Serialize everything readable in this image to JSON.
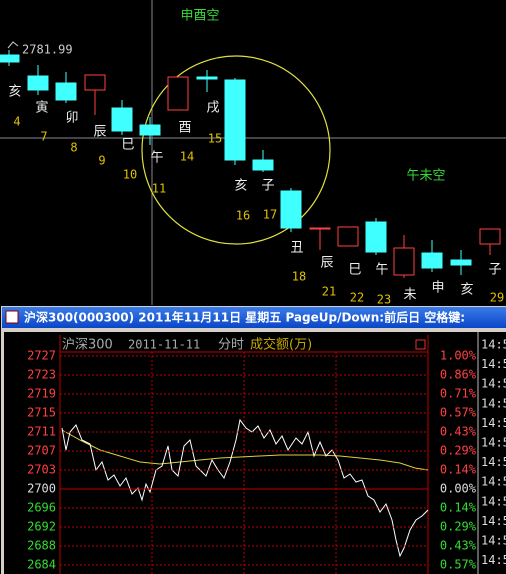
{
  "top_chart": {
    "price_label": "2781.99",
    "annotations": [
      "申酉空",
      "午未空"
    ],
    "candle_labels": [
      {
        "branch": "亥",
        "day": "4"
      },
      {
        "branch": "寅",
        "day": "7"
      },
      {
        "branch": "卯",
        "day": "8"
      },
      {
        "branch": "辰",
        "day": "9"
      },
      {
        "branch": "巳",
        "day": "10"
      },
      {
        "branch": "午",
        "day": "11"
      },
      {
        "branch": "酉",
        "day": "14"
      },
      {
        "branch": "戌",
        "day": "15"
      },
      {
        "branch": "亥",
        "day": "16"
      },
      {
        "branch": "子",
        "day": "17"
      },
      {
        "branch": "丑",
        "day": "18"
      },
      {
        "branch": "辰",
        "day": "21"
      },
      {
        "branch": "巳",
        "day": "22"
      },
      {
        "branch": "午",
        "day": "23"
      },
      {
        "branch": "未"
      },
      {
        "branch": "申"
      },
      {
        "branch": "亥"
      },
      {
        "branch": "子",
        "day": "29"
      }
    ]
  },
  "window": {
    "title": "沪深300(000300) 2011年11月11日 星期五 PageUp/Down:前后日 空格键:",
    "header": {
      "name": "沪深300",
      "date": "2011-11-11",
      "mode": "分时",
      "volume": "成交额(万)"
    },
    "price_ticks": [
      "2727",
      "2723",
      "2719",
      "2715",
      "2711",
      "2707",
      "2703",
      "2700",
      "2696",
      "2692",
      "2688",
      "2684"
    ],
    "pct_ticks": [
      "1.00%",
      "0.86%",
      "0.71%",
      "0.57%",
      "0.43%",
      "0.29%",
      "0.14%",
      "0.00%",
      "0.14%",
      "0.29%",
      "0.43%",
      "0.57%"
    ],
    "time_labels": [
      "14:5",
      "14:5",
      "14:5",
      "14:5",
      "14:5",
      "14:5",
      "14:5",
      "14:5",
      "14:5",
      "14:5",
      "14:5",
      "14:5"
    ]
  }
}
